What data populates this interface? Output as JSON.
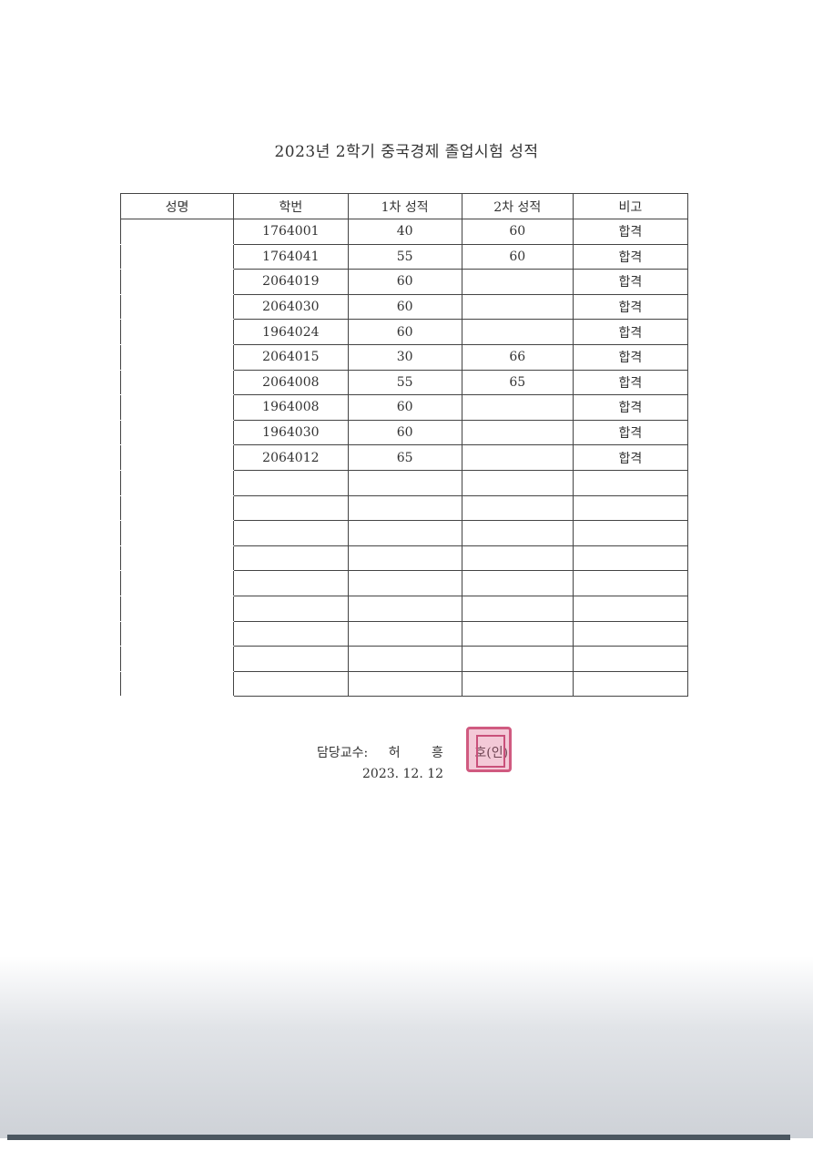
{
  "title": "2023년 2학기 중국경제 졸업시험 성적",
  "table": {
    "headers": [
      "성명",
      "학번",
      "1차 성적",
      "2차 성적",
      "비고"
    ],
    "rows": [
      {
        "id": "1764001",
        "first": "40",
        "second": "60",
        "note": "합격"
      },
      {
        "id": "1764041",
        "first": "55",
        "second": "60",
        "note": "합격"
      },
      {
        "id": "2064019",
        "first": "60",
        "second": "",
        "note": "합격"
      },
      {
        "id": "2064030",
        "first": "60",
        "second": "",
        "note": "합격"
      },
      {
        "id": "1964024",
        "first": "60",
        "second": "",
        "note": "합격"
      },
      {
        "id": "2064015",
        "first": "30",
        "second": "66",
        "note": "합격"
      },
      {
        "id": "2064008",
        "first": "55",
        "second": "65",
        "note": "합격"
      },
      {
        "id": "1964008",
        "first": "60",
        "second": "",
        "note": "합격"
      },
      {
        "id": "1964030",
        "first": "60",
        "second": "",
        "note": "합격"
      },
      {
        "id": "2064012",
        "first": "65",
        "second": "",
        "note": "합격"
      }
    ]
  },
  "signature": {
    "label": "담당교수:",
    "name": [
      "허",
      "흥",
      "호"
    ],
    "seal_mark": "(인)",
    "date": "2023. 12. 12"
  },
  "colors": {
    "stamp": "#d05a80"
  }
}
